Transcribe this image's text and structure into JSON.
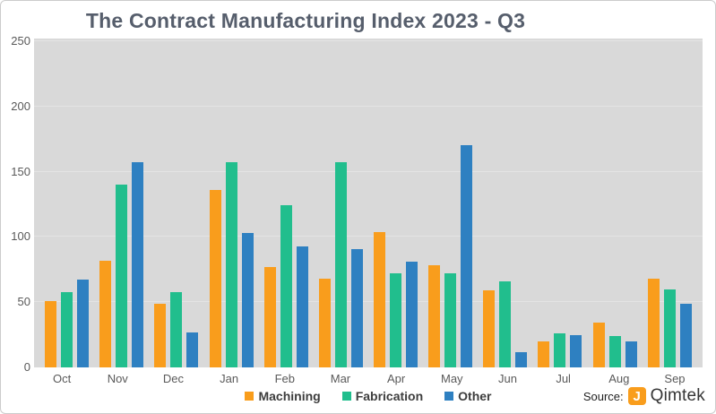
{
  "chart_data": {
    "type": "bar",
    "title": "The Contract Manufacturing Index 2023 - Q3",
    "categories": [
      "Oct",
      "Nov",
      "Dec",
      "Jan",
      "Feb",
      "Mar",
      "Apr",
      "May",
      "Jun",
      "Jul",
      "Aug",
      "Sep"
    ],
    "series": [
      {
        "name": "Machining",
        "color": "#F99D1C",
        "values": [
          51,
          82,
          49,
          136,
          77,
          68,
          104,
          78,
          59,
          20,
          34,
          68
        ]
      },
      {
        "name": "Fabrication",
        "color": "#21BE8D",
        "values": [
          58,
          140,
          58,
          157,
          124,
          157,
          72,
          72,
          66,
          26,
          24,
          60
        ]
      },
      {
        "name": "Other",
        "color": "#2E80C1",
        "values": [
          67,
          157,
          27,
          103,
          93,
          91,
          81,
          170,
          12,
          25,
          20,
          49
        ]
      }
    ],
    "ylim": [
      0,
      250
    ],
    "yticks": [
      0,
      50,
      100,
      150,
      200,
      250
    ],
    "xlabel": "",
    "ylabel": "",
    "grid": true,
    "legend_position": "bottom",
    "plot_background": "#D9D9D9",
    "gridline_color": "#E4E4E4",
    "title_color": "#565E6C"
  },
  "source": {
    "label": "Source:",
    "brand": "Qimtek",
    "logo_icon": "qimtek-logo",
    "logo_color": "#F99D1C",
    "logo_glyph": "J"
  }
}
